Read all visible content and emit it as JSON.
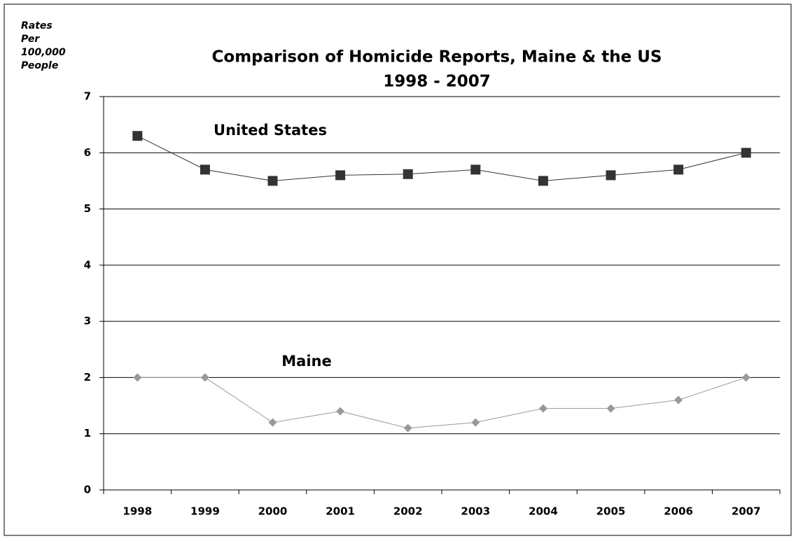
{
  "chart_data": {
    "type": "line",
    "title": "Comparison of Homicide Reports, Maine & the US",
    "subtitle": "1998 - 2007",
    "y_label": "Rates Per 100,000 People",
    "categories": [
      "1998",
      "1999",
      "2000",
      "2001",
      "2002",
      "2003",
      "2004",
      "2005",
      "2006",
      "2007"
    ],
    "series": [
      {
        "name": "United States",
        "color": "#333333",
        "marker": "square",
        "values": [
          6.3,
          5.7,
          5.5,
          5.6,
          5.62,
          5.7,
          5.5,
          5.6,
          5.7,
          6.0
        ]
      },
      {
        "name": "Maine",
        "color": "#999999",
        "marker": "diamond",
        "values": [
          2,
          2,
          1.2,
          1.4,
          1.1,
          1.2,
          1.45,
          1.45,
          1.6,
          2
        ]
      }
    ],
    "ylim": [
      0,
      7
    ],
    "yticks": [
      0,
      1,
      2,
      3,
      4,
      5,
      6,
      7
    ],
    "grid": true
  }
}
